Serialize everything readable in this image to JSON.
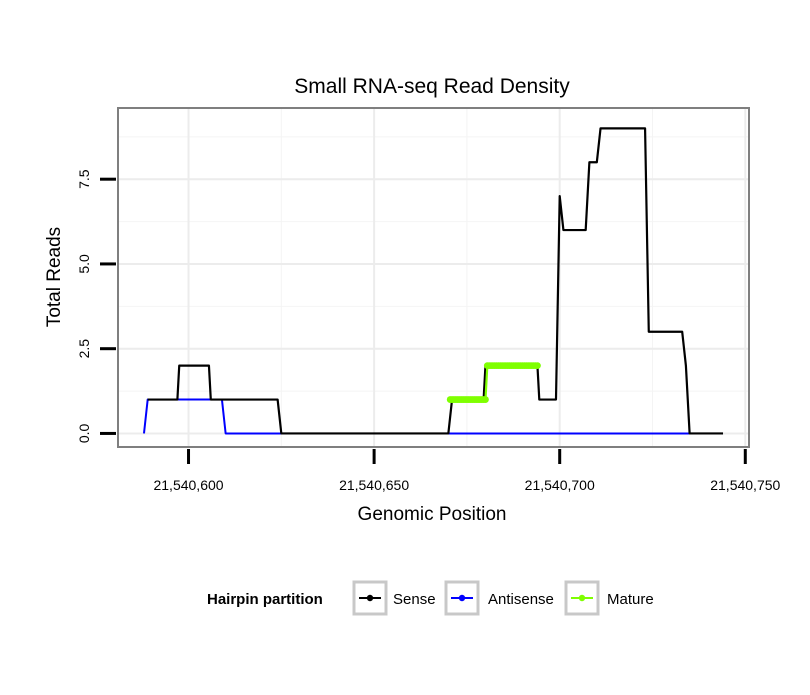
{
  "chart_data": {
    "type": "line",
    "title": "Small RNA-seq Read Density",
    "xlabel": "Genomic Position",
    "ylabel": "Total Reads",
    "xlim": [
      21540581,
      21540751
    ],
    "ylim": [
      -0.4,
      9.6
    ],
    "x_ticks": [
      21540600,
      21540650,
      21540700,
      21540750
    ],
    "x_tick_labels": [
      "21,540,600",
      "21,540,650",
      "21,540,700",
      "21,540,750"
    ],
    "y_ticks": [
      0,
      2.5,
      5,
      7.5
    ],
    "y_tick_labels": [
      "0.0",
      "2.5",
      "5.0",
      "7.5"
    ],
    "grid": true,
    "legend": {
      "title": "Hairpin partition",
      "position": "bottom",
      "entries": [
        "Sense",
        "Antisense",
        "Mature"
      ]
    },
    "series": [
      {
        "name": "Sense",
        "color": "#000000",
        "points": [
          [
            21540589,
            1
          ],
          [
            21540597,
            1
          ],
          [
            21540597.5,
            2
          ],
          [
            21540605.5,
            2
          ],
          [
            21540606,
            1
          ],
          [
            21540624,
            1
          ],
          [
            21540625,
            0
          ],
          [
            21540670,
            0
          ],
          [
            21540671,
            1
          ],
          [
            21540679.5,
            1
          ],
          [
            21540680,
            2
          ],
          [
            21540694,
            2
          ],
          [
            21540694.5,
            1
          ],
          [
            21540699,
            1
          ],
          [
            21540700,
            7
          ],
          [
            21540701,
            6
          ],
          [
            21540707,
            6
          ],
          [
            21540708,
            8
          ],
          [
            21540710,
            8
          ],
          [
            21540711,
            9
          ],
          [
            21540723,
            9
          ],
          [
            21540724,
            3
          ],
          [
            21540733,
            3
          ],
          [
            21540734,
            2
          ],
          [
            21540735,
            0
          ],
          [
            21540744,
            0
          ]
        ]
      },
      {
        "name": "Antisense",
        "color": "#0000ff",
        "points": [
          [
            21540588,
            0
          ],
          [
            21540589,
            1
          ],
          [
            21540609,
            1
          ],
          [
            21540610,
            0
          ],
          [
            21540735,
            0
          ]
        ]
      },
      {
        "name": "Mature",
        "color": "#7fff00",
        "points": [
          [
            21540670.5,
            1
          ],
          [
            21540680,
            1
          ],
          [
            21540680.5,
            2
          ],
          [
            21540694,
            2
          ]
        ]
      }
    ]
  }
}
